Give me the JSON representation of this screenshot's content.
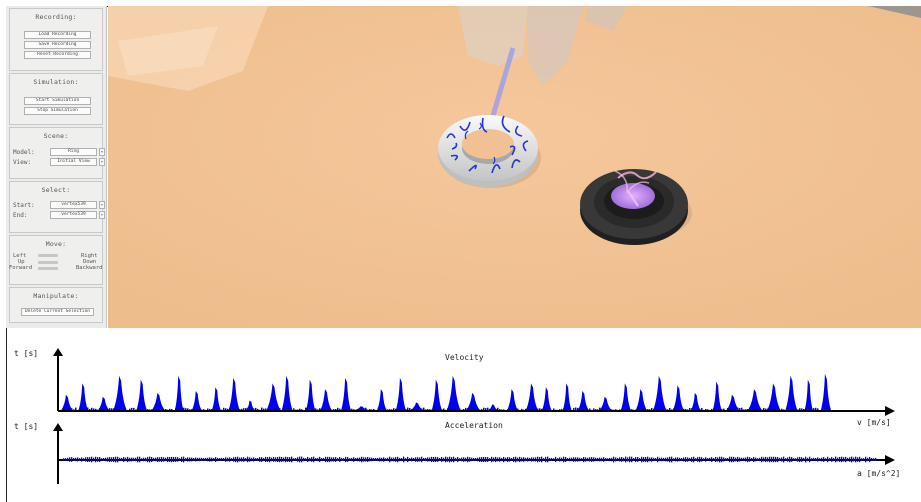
{
  "recording": {
    "title": "Recording:",
    "load_label": "Load Recording",
    "save_label": "Save Recording",
    "reset_label": "Reset Recording"
  },
  "simulation": {
    "title": "Simulation:",
    "start_label": "Start Simulation",
    "stop_label": "Stop Simulation"
  },
  "scene": {
    "title": "Scene:",
    "model_label": "Model:",
    "model_value": "Ring",
    "view_label": "View:",
    "view_value": "Initial View"
  },
  "select": {
    "title": "Select:",
    "start_label": "Start:",
    "start_value": "vertex539",
    "end_label": "End:",
    "end_value": "vertex539"
  },
  "move": {
    "title": "Move:",
    "left": "Left",
    "right": "Right",
    "up": "Up",
    "down": "Down",
    "forward": "Forward",
    "backward": "Backward"
  },
  "manipulate": {
    "title": "Manipulate:",
    "delete_label": "Delete Current Selection"
  },
  "colors": {
    "floor": "#f2c193",
    "trace": "#0000ee",
    "axis": "#000000"
  },
  "chart_data": [
    {
      "type": "area",
      "title": "Velocity",
      "ylabel": "t [s]",
      "xlabel": "v [m/s]",
      "peaks": [
        0.4,
        0.7,
        0.35,
        0.9,
        0.8,
        0.45,
        0.9,
        0.5,
        0.6,
        0.85,
        0.25,
        0.7,
        0.9,
        0.8,
        0.55,
        0.85,
        0.1,
        0.55,
        0.85,
        0.2,
        0.8,
        0.9,
        0.45,
        0.15,
        0.55,
        0.7,
        0.6,
        0.7,
        0.5,
        0.35,
        0.7,
        0.55,
        0.9,
        0.65,
        0.45,
        0.75,
        0.4,
        0.55,
        0.7,
        0.9,
        0.8,
        0.95
      ]
    },
    {
      "type": "area",
      "title": "Acceleration",
      "ylabel": "t [s]",
      "xlabel": "a [m/s^2]"
    }
  ]
}
